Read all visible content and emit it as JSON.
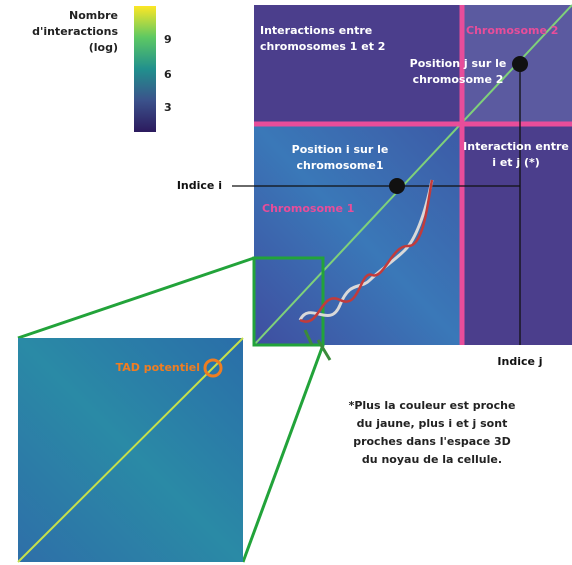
{
  "colorbar": {
    "title": [
      "Nombre",
      "d'interactions",
      "(log)"
    ],
    "ticks": [
      "9",
      "6",
      "3"
    ]
  },
  "matrix": {
    "regions": [
      {
        "lines": [
          "Interactions entre",
          "chromosomes 1 et 2"
        ]
      },
      {
        "lines": [
          "Chromosome 2"
        ]
      },
      {
        "lines": [
          "Position j sur le",
          "chromosome 2"
        ]
      },
      {
        "lines": [
          "Position i sur le",
          "chromosome1"
        ]
      },
      {
        "lines": [
          "Interaction entre",
          "i et j (*)"
        ]
      },
      {
        "lines": [
          "Chromosome 1"
        ]
      }
    ]
  },
  "indices": {
    "i": "Indice i",
    "j": "Indice j"
  },
  "zoom": {
    "label": "TAD potentiel"
  },
  "note": [
    "*Plus la couleur est proche",
    "du jaune, plus i et j sont",
    "proches dans l'espace 3D",
    "du noyau de la cellule."
  ]
}
